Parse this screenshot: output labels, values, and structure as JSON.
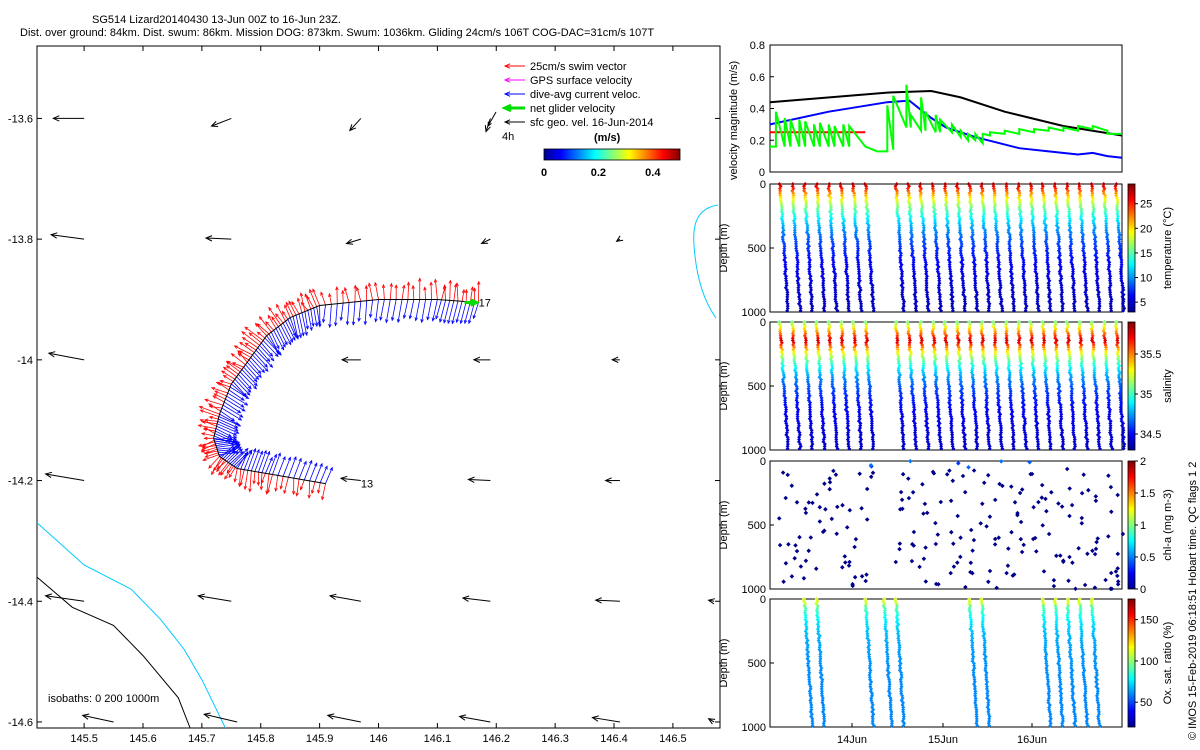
{
  "header": {
    "title": "SG514 Lizard20140430 13-Jun 00Z to 16-Jun 23Z.",
    "subtitle": "Dist. over ground: 84km. Dist. swum: 86km. Mission DOG: 873km. Swum: 1036km. Gliding 24cm/s 106T COG-DAC=31cm/s 107T"
  },
  "side_label": "© IMOS 15-Feb-2019 06:18:51 Hobart time. QC flags 1  2",
  "chart_data": [
    {
      "type": "scatter",
      "subtype": "map-vectors",
      "xlim": [
        145.42,
        146.58
      ],
      "ylim": [
        -14.61,
        -13.48
      ],
      "xticks": [
        145.5,
        145.6,
        145.7,
        145.8,
        145.9,
        146,
        146.1,
        146.2,
        146.3,
        146.4,
        146.5
      ],
      "xtick_labels": [
        "145.5",
        "145.6",
        "145.7",
        "145.8",
        "145.9",
        "146",
        "146.1",
        "146.2",
        "146.3",
        "146.4",
        "146.5"
      ],
      "yticks": [
        -13.6,
        -13.8,
        -14,
        -14.2,
        -14.4,
        -14.6
      ],
      "ytick_labels": [
        "-13.6",
        "-13.8",
        "-14",
        "-14.2",
        "-14.4",
        "-14.6"
      ],
      "legend": {
        "placement": "top-right",
        "items": [
          {
            "label": "25cm/s swim vector",
            "color": "#ff0000"
          },
          {
            "label": "GPS surface velocity",
            "color": "#ff00ff"
          },
          {
            "label": "dive-avg current veloc.",
            "color": "#0000ff"
          },
          {
            "label": "net glider velocity",
            "color": "#00dd00"
          },
          {
            "label": "sfc geo. vel. 16-Jun-2014",
            "color": "#000000"
          }
        ],
        "extra": "4h"
      },
      "colorbar": {
        "label": "(m/s)",
        "ticks": [
          "0",
          "0.2",
          "0.4"
        ],
        "range": [
          0,
          0.5
        ]
      },
      "isobath_label": "isobaths: 0   200  1000m",
      "track_labels": [
        {
          "text": "17",
          "lon": 146.17,
          "lat": -13.905
        },
        {
          "text": "13",
          "lon": 145.97,
          "lat": -14.205
        }
      ],
      "sfc_vectors": [
        {
          "lon": 145.5,
          "lat": -13.6,
          "u": -0.28,
          "v": 0.0
        },
        {
          "lon": 145.75,
          "lat": -13.6,
          "u": -0.18,
          "v": -0.07
        },
        {
          "lon": 145.97,
          "lat": -13.6,
          "u": -0.1,
          "v": -0.11
        },
        {
          "lon": 146.19,
          "lat": -13.6,
          "u": -0.04,
          "v": -0.12
        },
        {
          "lon": 145.5,
          "lat": -13.8,
          "u": -0.3,
          "v": 0.04
        },
        {
          "lon": 145.75,
          "lat": -13.8,
          "u": -0.23,
          "v": 0.01
        },
        {
          "lon": 145.97,
          "lat": -13.8,
          "u": -0.13,
          "v": -0.04
        },
        {
          "lon": 146.19,
          "lat": -13.8,
          "u": -0.08,
          "v": -0.04
        },
        {
          "lon": 146.41,
          "lat": -13.8,
          "u": -0.03,
          "v": -0.02
        },
        {
          "lon": 145.5,
          "lat": -14.0,
          "u": -0.32,
          "v": 0.06
        },
        {
          "lon": 145.97,
          "lat": -14.0,
          "u": -0.17,
          "v": 0.0
        },
        {
          "lon": 146.19,
          "lat": -14.0,
          "u": -0.15,
          "v": 0.0
        },
        {
          "lon": 146.41,
          "lat": -14.0,
          "u": -0.07,
          "v": 0.0
        },
        {
          "lon": 145.5,
          "lat": -14.2,
          "u": -0.35,
          "v": 0.06
        },
        {
          "lon": 145.97,
          "lat": -14.2,
          "u": -0.18,
          "v": 0.02
        },
        {
          "lon": 146.19,
          "lat": -14.2,
          "u": -0.2,
          "v": 0.01
        },
        {
          "lon": 146.41,
          "lat": -14.2,
          "u": -0.13,
          "v": 0.0
        },
        {
          "lon": 145.5,
          "lat": -14.4,
          "u": -0.35,
          "v": 0.05
        },
        {
          "lon": 145.75,
          "lat": -14.4,
          "u": -0.3,
          "v": 0.05
        },
        {
          "lon": 145.97,
          "lat": -14.4,
          "u": -0.28,
          "v": 0.05
        },
        {
          "lon": 146.19,
          "lat": -14.4,
          "u": -0.25,
          "v": 0.03
        },
        {
          "lon": 146.41,
          "lat": -14.4,
          "u": -0.22,
          "v": 0.01
        },
        {
          "lon": 146.57,
          "lat": -14.4,
          "u": -0.05,
          "v": 0.01
        },
        {
          "lon": 145.55,
          "lat": -14.6,
          "u": -0.28,
          "v": 0.06
        },
        {
          "lon": 145.76,
          "lat": -14.6,
          "u": -0.3,
          "v": 0.07
        },
        {
          "lon": 145.97,
          "lat": -14.6,
          "u": -0.3,
          "v": 0.06
        },
        {
          "lon": 146.19,
          "lat": -14.6,
          "u": -0.28,
          "v": 0.05
        },
        {
          "lon": 146.41,
          "lat": -14.6,
          "u": -0.25,
          "v": 0.04
        },
        {
          "lon": 146.57,
          "lat": -14.6,
          "u": -0.05,
          "v": 0.03
        }
      ],
      "track": [
        {
          "lon": 146.17,
          "lat": -13.905
        },
        {
          "lon": 146.1,
          "lat": -13.9
        },
        {
          "lon": 146.0,
          "lat": -13.9
        },
        {
          "lon": 145.9,
          "lat": -13.91
        },
        {
          "lon": 145.85,
          "lat": -13.93
        },
        {
          "lon": 145.81,
          "lat": -13.96
        },
        {
          "lon": 145.78,
          "lat": -14.0
        },
        {
          "lon": 145.75,
          "lat": -14.04
        },
        {
          "lon": 145.73,
          "lat": -14.09
        },
        {
          "lon": 145.72,
          "lat": -14.13
        },
        {
          "lon": 145.73,
          "lat": -14.16
        },
        {
          "lon": 145.76,
          "lat": -14.18
        },
        {
          "lon": 145.82,
          "lat": -14.19
        },
        {
          "lon": 145.91,
          "lat": -14.205
        }
      ],
      "isobath_0": [
        {
          "lon": 145.42,
          "lat": -14.36
        },
        {
          "lon": 145.48,
          "lat": -14.41
        },
        {
          "lon": 145.55,
          "lat": -14.44
        },
        {
          "lon": 145.6,
          "lat": -14.49
        },
        {
          "lon": 145.66,
          "lat": -14.56
        },
        {
          "lon": 145.68,
          "lat": -14.61
        }
      ],
      "isobath_200": [
        {
          "lon": 145.42,
          "lat": -14.27
        },
        {
          "lon": 145.5,
          "lat": -14.34
        },
        {
          "lon": 145.58,
          "lat": -14.38
        },
        {
          "lon": 145.63,
          "lat": -14.43
        },
        {
          "lon": 145.67,
          "lat": -14.48
        },
        {
          "lon": 145.7,
          "lat": -14.53
        },
        {
          "lon": 145.74,
          "lat": -14.61
        }
      ]
    },
    {
      "type": "line",
      "ylabel": "velocity magnitude (m/s)",
      "ylim": [
        0,
        0.8
      ],
      "yticks": [
        "0",
        "0.2",
        "0.4",
        "0.6",
        "0.8"
      ],
      "x_index_range": [
        0,
        24
      ],
      "series": [
        {
          "color": "#000000",
          "x": [
            0,
            8,
            11,
            13,
            16,
            20,
            24
          ],
          "values": [
            0.44,
            0.5,
            0.51,
            0.47,
            0.38,
            0.29,
            0.23
          ]
        },
        {
          "color": "#0000ff",
          "x": [
            0,
            4,
            8,
            9.5,
            11,
            12,
            14,
            17,
            19,
            21,
            22,
            23,
            24
          ],
          "values": [
            0.3,
            0.38,
            0.44,
            0.45,
            0.34,
            0.28,
            0.22,
            0.15,
            0.13,
            0.11,
            0.12,
            0.1,
            0.09
          ]
        },
        {
          "color": "#ff0000",
          "x": [
            0,
            6.5,
            7,
            24
          ],
          "values": [
            0.25,
            0.25,
            null,
            0.25
          ]
        },
        {
          "color": "#00ff00",
          "x": [
            0,
            0.4,
            0.4,
            1,
            1,
            1.4,
            1.4,
            2,
            2,
            2.4,
            2.4,
            3,
            3,
            3.4,
            3.4,
            4,
            4,
            4.4,
            4.4,
            5,
            5,
            5.4,
            5.4,
            6.5,
            7.3,
            7.3,
            8,
            8,
            8.4,
            8.4,
            9.3,
            9.3,
            9.6,
            9.6,
            10.3,
            10.3,
            10.6,
            10.6,
            11.3,
            11.3,
            11.6,
            11.6,
            12.4,
            12.4,
            13,
            13,
            13.5,
            13.5,
            14,
            14,
            14.5,
            14.5,
            15,
            15,
            16,
            16,
            17,
            17,
            18,
            18,
            19,
            19,
            20,
            20,
            21,
            21,
            22,
            22,
            23,
            23,
            24
          ],
          "values": [
            0.16,
            0.16,
            0.38,
            0.16,
            0.34,
            0.16,
            0.33,
            0.16,
            0.33,
            0.16,
            0.32,
            0.16,
            0.3,
            0.16,
            0.31,
            0.16,
            0.3,
            0.16,
            0.29,
            0.16,
            0.3,
            0.16,
            0.29,
            0.16,
            0.13,
            0.13,
            0.13,
            0.42,
            0.14,
            0.48,
            0.28,
            0.55,
            0.28,
            0.36,
            0.26,
            0.47,
            0.26,
            0.38,
            0.25,
            0.36,
            0.25,
            0.33,
            0.25,
            0.3,
            0.22,
            0.26,
            0.2,
            0.24,
            0.2,
            0.24,
            0.18,
            0.24,
            0.23,
            0.25,
            0.24,
            0.26,
            0.24,
            0.27,
            0.25,
            0.27,
            0.26,
            0.28,
            0.26,
            0.28,
            0.26,
            0.29,
            0.27,
            0.29,
            0.26,
            0.24,
            0.24
          ]
        }
      ]
    },
    {
      "type": "scatter",
      "subtype": "profile-section",
      "ylabel": "Depth (m)",
      "ylim": [
        1000,
        0
      ],
      "yticks": [
        "0",
        "500",
        "1000"
      ],
      "variable": "temperature",
      "colorbar": {
        "label": "temperature (°C)",
        "ticks": [
          "5",
          "10",
          "15",
          "20",
          "25"
        ],
        "range": [
          3,
          29
        ]
      },
      "dives": 28,
      "gap_after_dive": 7,
      "max_depth": 1000,
      "surface_value": 28,
      "deep_value": 4
    },
    {
      "type": "scatter",
      "subtype": "profile-section",
      "ylabel": "Depth (m)",
      "ylim": [
        1000,
        0
      ],
      "yticks": [
        "0",
        "500",
        "1000"
      ],
      "variable": "salinity",
      "colorbar": {
        "label": "salinity",
        "ticks": [
          "34.5",
          "35",
          "35.5"
        ],
        "range": [
          34.3,
          35.9
        ]
      },
      "dives": 28,
      "gap_after_dive": 7,
      "max_depth": 1000,
      "surface_value": 35.1,
      "deep_value": 34.4,
      "sub_surface_max_depth": 150,
      "sub_surface_max_value": 35.8
    },
    {
      "type": "scatter",
      "subtype": "profile-section",
      "ylabel": "Depth (m)",
      "ylim": [
        1000,
        0
      ],
      "yticks": [
        "0",
        "500",
        "1000"
      ],
      "variable": "chl-a",
      "colorbar": {
        "label": "chl-a (mg m-3)",
        "ticks": [
          "0",
          "0.5",
          "1",
          "1.5",
          "2"
        ],
        "range": [
          0,
          2
        ]
      },
      "dives": 28,
      "gap_after_dive": 7,
      "sparse": true,
      "points_per_dive": 8
    },
    {
      "type": "scatter",
      "subtype": "profile-section",
      "ylabel": "Depth (m)",
      "ylim": [
        1000,
        0
      ],
      "yticks": [
        "0",
        "500",
        "1000"
      ],
      "variable": "oxygen",
      "colorbar": {
        "label": "Ox. sat. ratio (%)",
        "ticks": [
          "50",
          "100",
          "150"
        ],
        "range": [
          20,
          175
        ]
      },
      "dives": [
        2,
        3,
        7,
        8,
        9,
        15,
        16,
        21,
        22,
        23,
        24,
        25
      ],
      "xticks": [
        "14Jun",
        "15Jun",
        "16Jun"
      ],
      "max_depth": 1000,
      "surface_value": 110,
      "deep_value": 60
    }
  ]
}
